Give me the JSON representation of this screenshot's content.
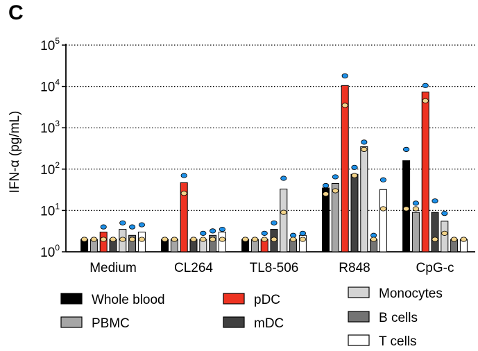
{
  "panel_label": "C",
  "colors": {
    "whole_blood": "#000000",
    "pbmc": "#a6a6a6",
    "pdc": "#ee3322",
    "mdc": "#404040",
    "monocytes": "#d4d4d4",
    "b_cells": "#737373",
    "t_cells": "#ffffff",
    "dot_blue": "#1e90e8",
    "dot_yellow": "#f2d38a"
  },
  "chart_data": {
    "type": "bar",
    "ylabel": "IFN-α (pg/mL)",
    "yscale": "log",
    "ylim": [
      1,
      100000
    ],
    "yticks": [
      {
        "value": 1,
        "base": "10",
        "exp": "0"
      },
      {
        "value": 10,
        "base": "10",
        "exp": "1"
      },
      {
        "value": 100,
        "base": "10",
        "exp": "2"
      },
      {
        "value": 1000,
        "base": "10",
        "exp": "3"
      },
      {
        "value": 10000,
        "base": "10",
        "exp": "4"
      },
      {
        "value": 100000,
        "base": "10",
        "exp": "5"
      }
    ],
    "grid": "horizontal dotted",
    "categories": [
      "Medium",
      "CL264",
      "TL8-506",
      "R848",
      "CpG-c"
    ],
    "series": [
      {
        "name": "Whole blood",
        "color_key": "whole_blood",
        "values": [
          2,
          2,
          2,
          35,
          160
        ],
        "donors": [
          [
            2,
            2
          ],
          [
            2,
            2
          ],
          [
            2,
            2
          ],
          [
            40,
            25
          ],
          [
            300,
            11
          ]
        ]
      },
      {
        "name": "PBMC",
        "color_key": "pbmc",
        "values": [
          2,
          2,
          2,
          45,
          9
        ],
        "donors": [
          [
            2,
            2
          ],
          [
            2,
            2
          ],
          [
            2,
            2
          ],
          [
            65,
            30
          ],
          [
            15,
            11
          ]
        ]
      },
      {
        "name": "pDC",
        "color_key": "pdc",
        "values": [
          3,
          47,
          2,
          10500,
          7300
        ],
        "donors": [
          [
            4,
            2
          ],
          [
            70,
            26
          ],
          [
            2.8,
            2
          ],
          [
            18000,
            3500
          ],
          [
            10500,
            4500
          ]
        ]
      },
      {
        "name": "mDC",
        "color_key": "mdc",
        "values": [
          2,
          2,
          3.5,
          75,
          9
        ],
        "donors": [
          [
            2,
            2
          ],
          [
            2,
            2
          ],
          [
            5,
            2
          ],
          [
            110,
            70
          ],
          [
            17,
            2
          ]
        ]
      },
      {
        "name": "Monocytes",
        "color_key": "monocytes",
        "values": [
          3.5,
          2,
          33,
          350,
          5.5
        ],
        "donors": [
          [
            5,
            2
          ],
          [
            2.8,
            2
          ],
          [
            60,
            9
          ],
          [
            450,
            300
          ],
          [
            8.5,
            2.8
          ]
        ]
      },
      {
        "name": "B cells",
        "color_key": "b_cells",
        "values": [
          2.5,
          2.5,
          2,
          2,
          2
        ],
        "donors": [
          [
            4,
            2
          ],
          [
            3.2,
            2
          ],
          [
            2.5,
            2
          ],
          [
            2.5,
            2
          ],
          [
            2,
            2
          ]
        ]
      },
      {
        "name": "T cells",
        "color_key": "t_cells",
        "values": [
          3,
          3,
          2.5,
          32,
          2
        ],
        "donors": [
          [
            4.5,
            2
          ],
          [
            3.5,
            2
          ],
          [
            2.8,
            2
          ],
          [
            55,
            11
          ],
          [
            2,
            2
          ]
        ]
      }
    ],
    "legend": {
      "placement": "bottom",
      "columns": [
        [
          "Whole blood",
          "PBMC"
        ],
        [
          "pDC",
          "mDC"
        ],
        [
          "Monocytes",
          "B cells",
          "T cells"
        ]
      ]
    }
  }
}
